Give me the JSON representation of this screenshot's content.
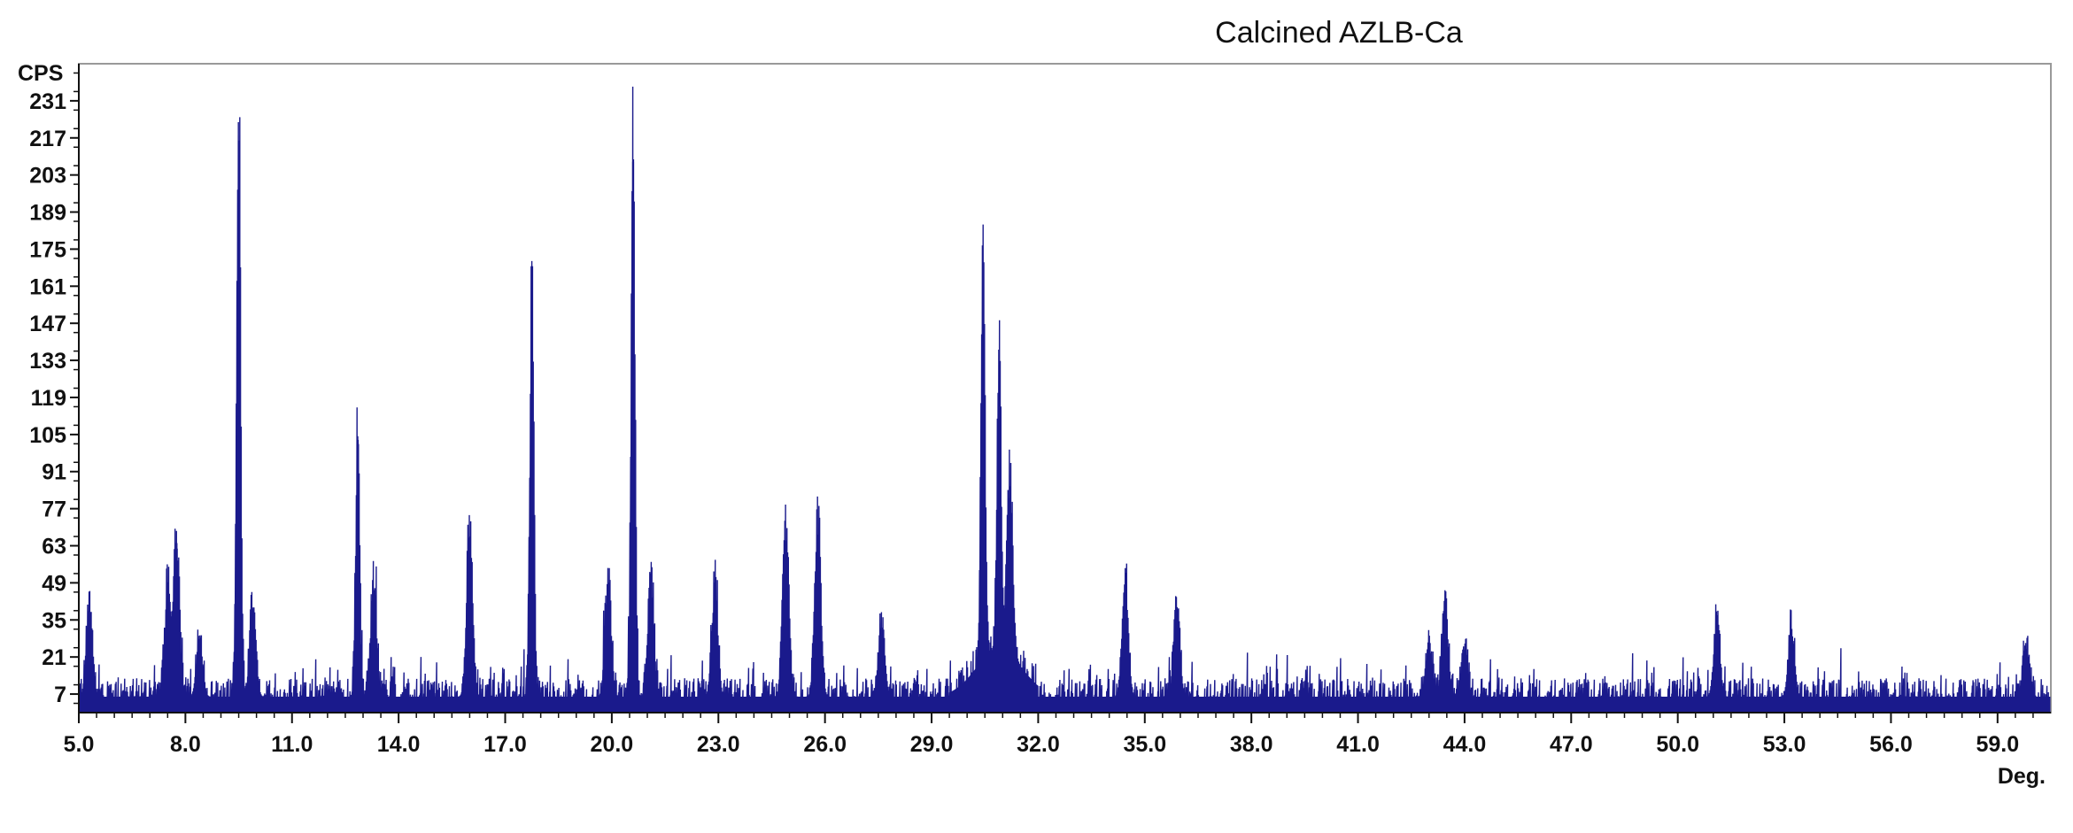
{
  "chart_data": {
    "type": "line",
    "title": "Calcined AZLB-Ca",
    "xlabel": "Deg.",
    "ylabel": "CPS",
    "xlim": [
      5.0,
      60.5
    ],
    "ylim": [
      0,
      245
    ],
    "x_ticks": [
      "5.0",
      "8.0",
      "11.0",
      "14.0",
      "17.0",
      "20.0",
      "23.0",
      "26.0",
      "29.0",
      "32.0",
      "35.0",
      "38.0",
      "41.0",
      "44.0",
      "47.0",
      "50.0",
      "53.0",
      "56.0",
      "59.0"
    ],
    "y_ticks": [
      "7",
      "21",
      "35",
      "49",
      "63",
      "77",
      "91",
      "105",
      "119",
      "133",
      "147",
      "161",
      "175",
      "189",
      "203",
      "217",
      "231"
    ],
    "series": [
      {
        "color": "#1a1a8c",
        "baseline": 6,
        "noise": 7,
        "peaks": [
          {
            "x": 5.3,
            "y": 37
          },
          {
            "x": 7.5,
            "y": 40
          },
          {
            "x": 7.75,
            "y": 64
          },
          {
            "x": 8.4,
            "y": 24
          },
          {
            "x": 9.5,
            "y": 216
          },
          {
            "x": 9.9,
            "y": 36
          },
          {
            "x": 12.85,
            "y": 103
          },
          {
            "x": 13.3,
            "y": 44
          },
          {
            "x": 16.0,
            "y": 65
          },
          {
            "x": 17.75,
            "y": 162
          },
          {
            "x": 19.9,
            "y": 46
          },
          {
            "x": 20.6,
            "y": 208
          },
          {
            "x": 21.1,
            "y": 47
          },
          {
            "x": 22.9,
            "y": 42
          },
          {
            "x": 24.9,
            "y": 65
          },
          {
            "x": 25.8,
            "y": 67
          },
          {
            "x": 27.6,
            "y": 28
          },
          {
            "x": 30.45,
            "y": 157
          },
          {
            "x": 30.9,
            "y": 115
          },
          {
            "x": 31.2,
            "y": 67
          },
          {
            "x": 34.45,
            "y": 46
          },
          {
            "x": 35.9,
            "y": 37
          },
          {
            "x": 43.0,
            "y": 21
          },
          {
            "x": 43.45,
            "y": 37
          },
          {
            "x": 44.0,
            "y": 20
          },
          {
            "x": 51.1,
            "y": 30
          },
          {
            "x": 53.2,
            "y": 27
          },
          {
            "x": 59.8,
            "y": 20
          }
        ]
      }
    ]
  }
}
